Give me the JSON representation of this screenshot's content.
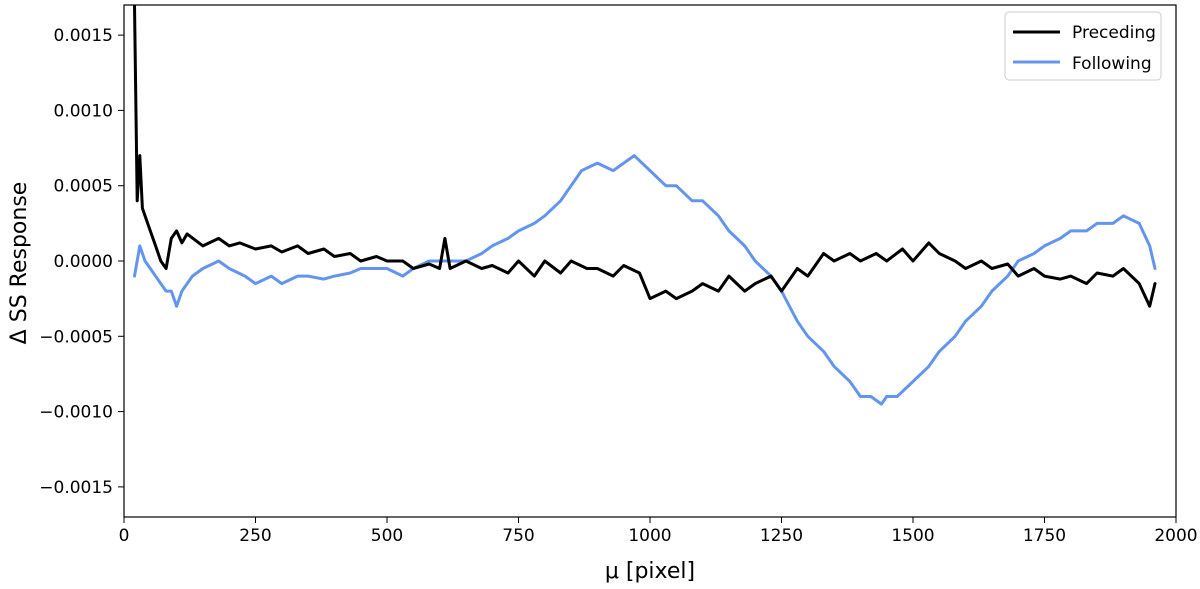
{
  "chart_data": {
    "type": "line",
    "title": "",
    "xlabel": "μ [pixel]",
    "ylabel": "Δ SS Response",
    "xlim": [
      0,
      2000
    ],
    "ylim": [
      -0.0017,
      0.0017
    ],
    "xticks": [
      0,
      250,
      500,
      750,
      1000,
      1250,
      1500,
      1750,
      2000
    ],
    "yticks": [
      -0.0015,
      -0.001,
      -0.0005,
      0.0,
      0.0005,
      0.001,
      0.0015
    ],
    "xtick_labels": [
      "0",
      "250",
      "500",
      "750",
      "1000",
      "1250",
      "1500",
      "1750",
      "2000"
    ],
    "ytick_labels": [
      "−0.0015",
      "−0.0010",
      "−0.0005",
      "0.0000",
      "0.0005",
      "0.0010",
      "0.0015"
    ],
    "grid": false,
    "legend_position": "top-right",
    "series": [
      {
        "name": "Preceding",
        "color": "#000000",
        "x": [
          20,
          25,
          30,
          35,
          40,
          50,
          60,
          70,
          80,
          90,
          100,
          110,
          120,
          150,
          180,
          200,
          220,
          250,
          280,
          300,
          330,
          350,
          380,
          400,
          430,
          450,
          480,
          500,
          530,
          550,
          580,
          600,
          610,
          620,
          650,
          680,
          700,
          730,
          750,
          780,
          800,
          830,
          850,
          880,
          900,
          930,
          950,
          980,
          1000,
          1030,
          1050,
          1080,
          1100,
          1130,
          1150,
          1180,
          1200,
          1230,
          1250,
          1280,
          1300,
          1330,
          1350,
          1380,
          1400,
          1430,
          1450,
          1480,
          1500,
          1530,
          1550,
          1580,
          1600,
          1630,
          1650,
          1680,
          1700,
          1730,
          1750,
          1780,
          1800,
          1830,
          1850,
          1880,
          1900,
          1930,
          1950,
          1960
        ],
        "y": [
          0.0017,
          0.0004,
          0.0007,
          0.00035,
          0.0003,
          0.0002,
          0.0001,
          0.0,
          -5e-05,
          0.00015,
          0.0002,
          0.00012,
          0.00018,
          0.0001,
          0.00015,
          0.0001,
          0.00012,
          8e-05,
          0.0001,
          6e-05,
          0.0001,
          5e-05,
          8e-05,
          3e-05,
          5e-05,
          0.0,
          3e-05,
          0.0,
          0.0,
          -5e-05,
          -2e-05,
          -5e-05,
          0.00015,
          -5e-05,
          0.0,
          -5e-05,
          -3e-05,
          -8e-05,
          0.0,
          -0.0001,
          0.0,
          -8e-05,
          0.0,
          -5e-05,
          -5e-05,
          -0.0001,
          -3e-05,
          -8e-05,
          -0.00025,
          -0.0002,
          -0.00025,
          -0.0002,
          -0.00015,
          -0.0002,
          -0.0001,
          -0.0002,
          -0.00015,
          -0.0001,
          -0.0002,
          -5e-05,
          -0.0001,
          5e-05,
          0.0,
          5e-05,
          0.0,
          5e-05,
          0.0,
          8e-05,
          0.0,
          0.00012,
          5e-05,
          0.0,
          -5e-05,
          0.0,
          -5e-05,
          -2e-05,
          -0.0001,
          -5e-05,
          -0.0001,
          -0.00012,
          -0.0001,
          -0.00015,
          -8e-05,
          -0.0001,
          -5e-05,
          -0.00015,
          -0.0003,
          -0.00015
        ]
      },
      {
        "name": "Following",
        "color": "#6495ed",
        "x": [
          20,
          30,
          40,
          50,
          60,
          70,
          80,
          90,
          100,
          110,
          130,
          150,
          180,
          200,
          230,
          250,
          280,
          300,
          330,
          350,
          380,
          400,
          430,
          450,
          480,
          500,
          530,
          550,
          580,
          600,
          630,
          650,
          680,
          700,
          730,
          750,
          780,
          800,
          830,
          850,
          870,
          900,
          930,
          950,
          970,
          1000,
          1030,
          1050,
          1080,
          1100,
          1130,
          1150,
          1180,
          1200,
          1230,
          1250,
          1280,
          1300,
          1330,
          1350,
          1380,
          1400,
          1420,
          1440,
          1450,
          1470,
          1500,
          1530,
          1550,
          1580,
          1600,
          1630,
          1650,
          1680,
          1700,
          1730,
          1750,
          1780,
          1800,
          1830,
          1850,
          1880,
          1900,
          1930,
          1950,
          1960
        ],
        "y": [
          -0.0001,
          0.0001,
          0.0,
          -5e-05,
          -0.0001,
          -0.00015,
          -0.0002,
          -0.0002,
          -0.0003,
          -0.0002,
          -0.0001,
          -5e-05,
          0.0,
          -5e-05,
          -0.0001,
          -0.00015,
          -0.0001,
          -0.00015,
          -0.0001,
          -0.0001,
          -0.00012,
          -0.0001,
          -8e-05,
          -5e-05,
          -5e-05,
          -5e-05,
          -0.0001,
          -5e-05,
          0.0,
          0.0,
          0.0,
          0.0,
          5e-05,
          0.0001,
          0.00015,
          0.0002,
          0.00025,
          0.0003,
          0.0004,
          0.0005,
          0.0006,
          0.00065,
          0.0006,
          0.00065,
          0.0007,
          0.0006,
          0.0005,
          0.0005,
          0.0004,
          0.0004,
          0.0003,
          0.0002,
          0.0001,
          0.0,
          -0.0001,
          -0.0002,
          -0.0004,
          -0.0005,
          -0.0006,
          -0.0007,
          -0.0008,
          -0.0009,
          -0.0009,
          -0.00095,
          -0.0009,
          -0.0009,
          -0.0008,
          -0.0007,
          -0.0006,
          -0.0005,
          -0.0004,
          -0.0003,
          -0.0002,
          -0.0001,
          0.0,
          5e-05,
          0.0001,
          0.00015,
          0.0002,
          0.0002,
          0.00025,
          0.00025,
          0.0003,
          0.00025,
          0.0001,
          -5e-05
        ]
      }
    ]
  }
}
